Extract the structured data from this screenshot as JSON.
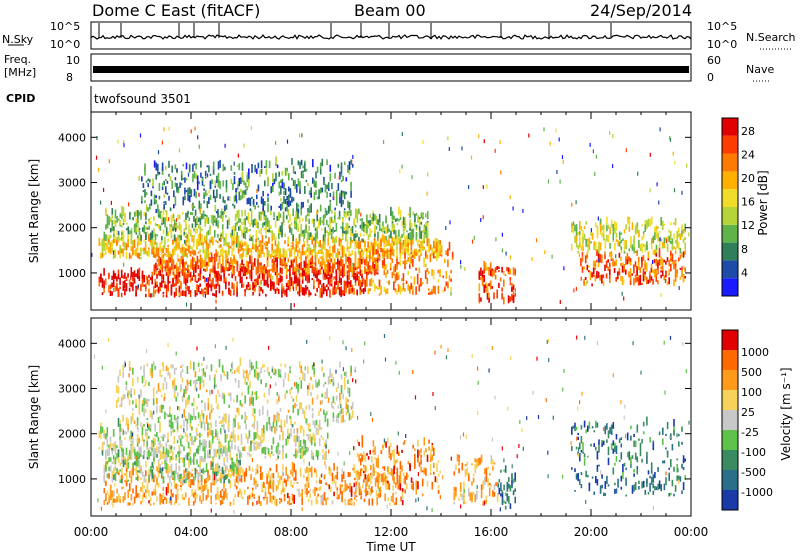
{
  "header": {
    "station": "Dome C East (fitACF)",
    "beam": "Beam 00",
    "date": "24/Sep/2014"
  },
  "top_panels": {
    "nsky": {
      "label": "N.Sky",
      "ymax": "10^5",
      "ymin": "10^0"
    },
    "nsearch": {
      "label": "N.Search",
      "ymax": "10^5",
      "ymin": "10^0"
    },
    "freq": {
      "label_line1": "Freq.",
      "label_line2": "[MHz]",
      "ymax": "10",
      "ymin": "8"
    },
    "nave": {
      "label": "Nave",
      "ymax": "60",
      "ymin": "0"
    },
    "cpid": {
      "label": "CPID",
      "value": "twofsound 3501"
    }
  },
  "chart_data": [
    {
      "type": "heatmap",
      "name": "power",
      "ylabel": "Slant Range [km]",
      "xlabel": "Time UT",
      "x_ticks": [
        "00:00",
        "04:00",
        "08:00",
        "12:00",
        "16:00",
        "20:00",
        "00:00"
      ],
      "y_ticks": [
        1000,
        2000,
        3000,
        4000
      ],
      "ylim": [
        180,
        4560
      ],
      "xlim_hours": [
        0,
        24
      ],
      "colorbar": {
        "label": "Power [dB]",
        "ticks": [
          4,
          8,
          12,
          16,
          20,
          24,
          28
        ],
        "colors": [
          "#1a1aff",
          "#1e4aa8",
          "#2f7f5a",
          "#5fb34a",
          "#b5d43a",
          "#f2dc2a",
          "#ffb000",
          "#ff7a00",
          "#ff3c00",
          "#e00000"
        ]
      },
      "bands": [
        {
          "t0": 0.3,
          "t1": 11.0,
          "r0": 450,
          "r1": 950,
          "level": 0.92
        },
        {
          "t0": 2.5,
          "t1": 11.5,
          "r0": 950,
          "r1": 1250,
          "level": 0.8
        },
        {
          "t0": 0.3,
          "t1": 14.0,
          "r0": 1300,
          "r1": 1700,
          "level": 0.62
        },
        {
          "t0": 0.5,
          "t1": 13.5,
          "r0": 1700,
          "r1": 2300,
          "level": 0.4
        },
        {
          "t0": 2.0,
          "t1": 10.5,
          "r0": 2300,
          "r1": 3400,
          "level": 0.25
        },
        {
          "t0": 11.0,
          "t1": 14.5,
          "r0": 500,
          "r1": 1500,
          "level": 0.72
        },
        {
          "t0": 15.5,
          "t1": 17.0,
          "r0": 300,
          "r1": 1100,
          "level": 0.85
        },
        {
          "t0": 19.5,
          "t1": 23.8,
          "r0": 700,
          "r1": 1400,
          "level": 0.8
        },
        {
          "t0": 19.2,
          "t1": 23.8,
          "r0": 1400,
          "r1": 2100,
          "level": 0.5
        }
      ]
    },
    {
      "type": "heatmap",
      "name": "velocity",
      "ylabel": "Slant Range [km]",
      "xlabel": "Time UT",
      "x_ticks": [
        "00:00",
        "04:00",
        "08:00",
        "12:00",
        "16:00",
        "20:00",
        "00:00"
      ],
      "y_ticks": [
        1000,
        2000,
        3000,
        4000
      ],
      "ylim": [
        180,
        4560
      ],
      "xlim_hours": [
        0,
        24
      ],
      "colorbar": {
        "label": "Velocity [m s⁻¹]",
        "ticks": [
          "1000",
          "500",
          "100",
          "25",
          "-25",
          "-100",
          "-500",
          "-1000"
        ],
        "colors": [
          "#1a3aa8",
          "#2a6f8a",
          "#3a8a62",
          "#5fc24a",
          "#c8c8c8",
          "#f7d25a",
          "#ff9a1a",
          "#ff6a00",
          "#e00000"
        ]
      },
      "bands": [
        {
          "t0": 0.5,
          "t1": 12.5,
          "r0": 400,
          "r1": 1200,
          "level": 0.72
        },
        {
          "t0": 0.5,
          "t1": 6.0,
          "r0": 900,
          "r1": 1600,
          "level": 0.45
        },
        {
          "t0": 0.3,
          "t1": 9.5,
          "r0": 1400,
          "r1": 2200,
          "level": 0.5
        },
        {
          "t0": 1.0,
          "t1": 10.5,
          "r0": 2200,
          "r1": 3500,
          "level": 0.52
        },
        {
          "t0": 10.5,
          "t1": 14.0,
          "r0": 600,
          "r1": 1800,
          "level": 0.75
        },
        {
          "t0": 14.5,
          "t1": 16.3,
          "r0": 400,
          "r1": 1400,
          "level": 0.7
        },
        {
          "t0": 16.3,
          "t1": 17.0,
          "r0": 300,
          "r1": 1200,
          "level": 0.22
        },
        {
          "t0": 19.2,
          "t1": 23.8,
          "r0": 600,
          "r1": 2200,
          "level": 0.2
        }
      ]
    }
  ]
}
